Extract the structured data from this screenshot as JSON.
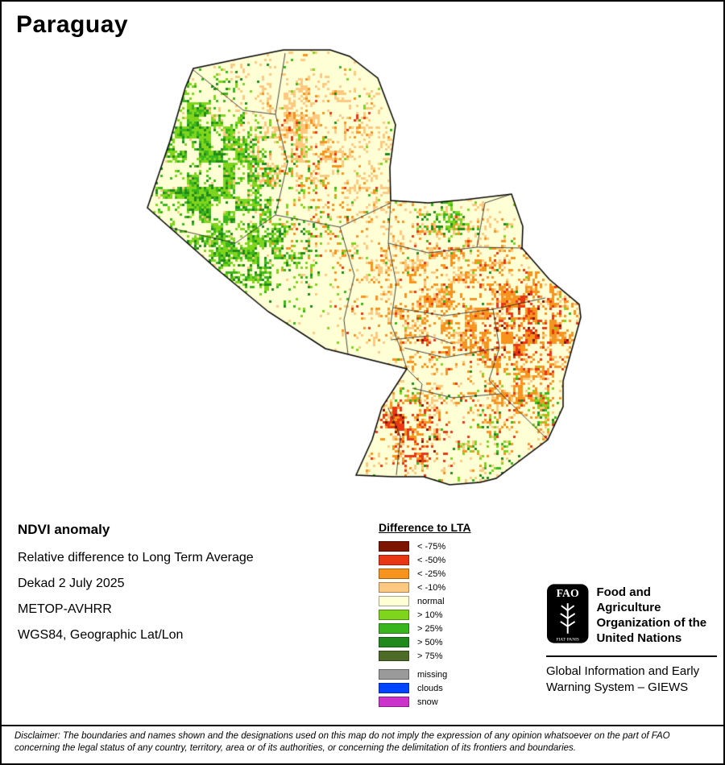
{
  "title": "Paraguay",
  "info": {
    "lines": [
      "NDVI anomaly",
      "Relative difference to Long Term Average",
      "Dekad 2 July 2025",
      "METOP-AVHRR",
      "WGS84, Geographic Lat/Lon"
    ]
  },
  "legend": {
    "title": "Difference to LTA",
    "entries": [
      {
        "label": "< -75%",
        "color": "#7e1402"
      },
      {
        "label": "< -50%",
        "color": "#e83715"
      },
      {
        "label": "< -25%",
        "color": "#f7941e"
      },
      {
        "label": "< -10%",
        "color": "#fdc981"
      },
      {
        "label": "normal",
        "color": "#ffffd5"
      },
      {
        "label": "> 10%",
        "color": "#7fd41c"
      },
      {
        "label": "> 25%",
        "color": "#39b51e"
      },
      {
        "label": "> 50%",
        "color": "#218a1d"
      },
      {
        "label": "> 75%",
        "color": "#4d6b27"
      }
    ],
    "extra_entries": [
      {
        "label": "missing",
        "color": "#9a9a9a"
      },
      {
        "label": "clouds",
        "color": "#0044ff"
      },
      {
        "label": "snow",
        "color": "#cc33cc"
      }
    ]
  },
  "organization": {
    "logo_text": "FAO",
    "logo_motto": "FIAT·PANIS",
    "name_lines": [
      "Food and Agriculture",
      "Organization of the",
      "United Nations"
    ],
    "system_lines": [
      "Global Information and Early",
      "Warning System – GIEWS"
    ]
  },
  "disclaimer": "Disclaimer: The boundaries and names shown and the designations used on this map do not imply the expression of any opinion whatsoever on the part of FAO concerning the legal status of any country, territory, area or of its authorities, or concerning the delimitation of its frontiers and boundaries."
}
